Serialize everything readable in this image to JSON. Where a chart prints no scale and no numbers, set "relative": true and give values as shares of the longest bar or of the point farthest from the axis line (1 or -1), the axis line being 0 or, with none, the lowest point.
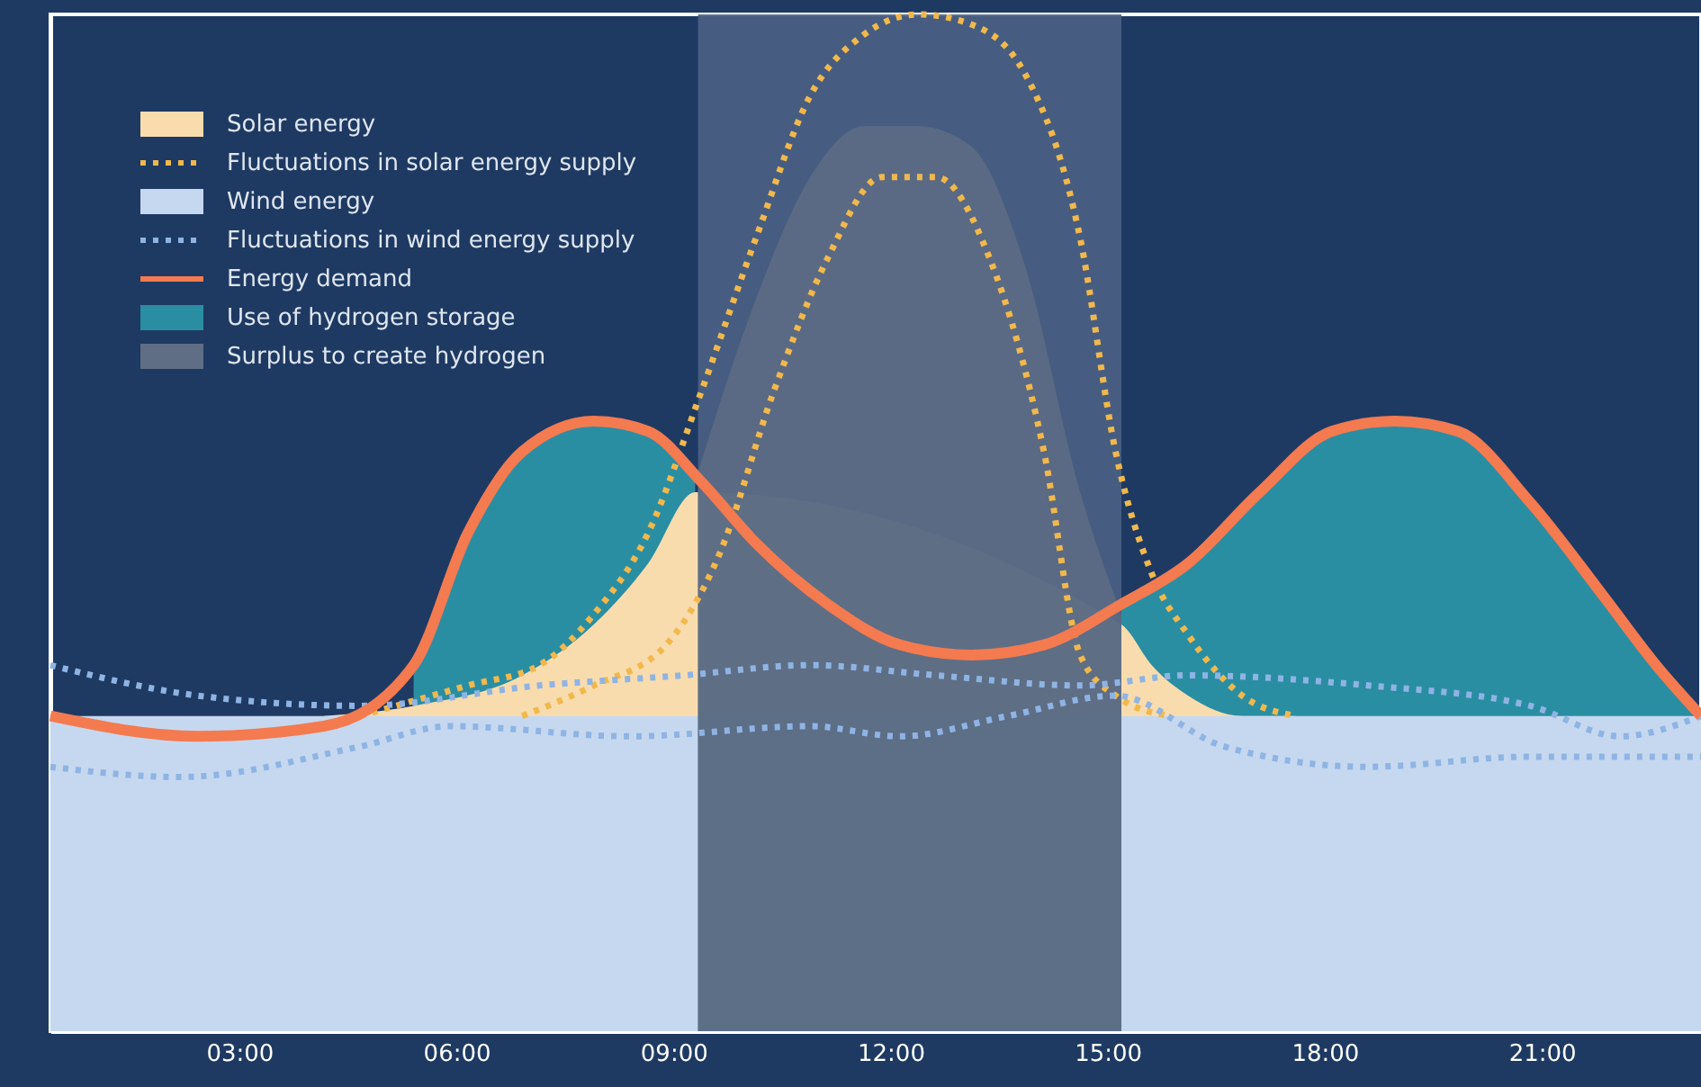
{
  "chart_data": {
    "type": "area",
    "relative": true,
    "xlim": [
      0.39,
      23.2
    ],
    "xticks": [
      {
        "value": 3,
        "label": "03:00"
      },
      {
        "value": 6,
        "label": "06:00"
      },
      {
        "value": 9,
        "label": "09:00"
      },
      {
        "value": 12,
        "label": "12:00"
      },
      {
        "value": 15,
        "label": "15:00"
      },
      {
        "value": 18,
        "label": "18:00"
      },
      {
        "value": 21,
        "label": "21:00"
      }
    ],
    "legend": "top left",
    "grid": false,
    "bands": [
      {
        "axis": "x",
        "from": 9.34,
        "to": 15.19,
        "color": "#4a6284"
      }
    ],
    "series": [
      {
        "name": "Solar energy",
        "color": "#f9dcae",
        "x": [
          4.17,
          5.41,
          6.91,
          7.9,
          8.65,
          9.3,
          15.19,
          15.61,
          16.11,
          16.86,
          17.6
        ],
        "values": [
          0.31,
          0.32,
          0.35,
          0.4,
          0.46,
          0.53,
          0.4,
          0.36,
          0.33,
          0.31,
          0.31
        ]
      },
      {
        "name": "Fluctuations in solar energy supply",
        "type": "line",
        "line_style": "dotted",
        "color": "#f2b84b",
        "x": [
          4.67,
          6.16,
          7.15,
          7.9,
          8.65,
          9.39,
          10.14,
          10.89,
          11.63,
          12.38,
          13.12,
          13.87,
          14.62,
          15.11,
          15.61,
          16.11,
          16.86,
          17.6
        ],
        "values": [
          0.31,
          0.34,
          0.36,
          0.41,
          0.49,
          0.63,
          0.78,
          0.92,
          0.98,
          1.0,
          0.99,
          0.94,
          0.78,
          0.57,
          0.45,
          0.39,
          0.33,
          0.31
        ]
      },
      {
        "type": "line",
        "line_style": "dotted",
        "color": "#f2b84b",
        "x": [
          6.91,
          7.9,
          8.9,
          9.64,
          10.39,
          11.13,
          11.88,
          12.63,
          13.37,
          14.12,
          14.62,
          15.11,
          15.86
        ],
        "values": [
          0.31,
          0.34,
          0.38,
          0.47,
          0.63,
          0.76,
          0.84,
          0.84,
          0.76,
          0.57,
          0.37,
          0.33,
          0.31
        ]
      },
      {
        "name": "Wind energy",
        "color": "#c6d8ef",
        "x": [
          0.39,
          23.2
        ],
        "values": [
          0.31,
          0.31
        ]
      },
      {
        "name": "Fluctuations in wind energy supply",
        "type": "line",
        "line_style": "dotted",
        "color": "#8fb4e3",
        "x": [
          0.39,
          2.43,
          4.67,
          7.15,
          9.14,
          10.89,
          12.63,
          14.62,
          16.11,
          18.6,
          20.84,
          22.08,
          23.2
        ],
        "values": [
          0.36,
          0.33,
          0.32,
          0.34,
          0.35,
          0.36,
          0.35,
          0.34,
          0.35,
          0.34,
          0.32,
          0.29,
          0.31
        ]
      },
      {
        "type": "line",
        "line_style": "dotted",
        "color": "#8fb4e3",
        "x": [
          0.39,
          2.18,
          4.67,
          5.91,
          8.4,
          10.89,
          12.13,
          13.62,
          15.11,
          16.61,
          18.6,
          20.84,
          23.2
        ],
        "values": [
          0.26,
          0.25,
          0.28,
          0.3,
          0.29,
          0.3,
          0.29,
          0.31,
          0.33,
          0.28,
          0.26,
          0.27,
          0.27
        ]
      },
      {
        "name": "Energy demand",
        "type": "line",
        "line_style": "solid",
        "color": "#f47a50",
        "x": [
          0.39,
          2.43,
          4.17,
          5.41,
          6.16,
          6.91,
          7.9,
          8.65,
          9.39,
          10.14,
          11.13,
          12.13,
          13.12,
          14.12,
          15.19,
          16.11,
          17.1,
          18.1,
          18.97,
          19.84,
          20.84,
          21.83,
          22.58,
          23.2
        ],
        "values": [
          0.31,
          0.29,
          0.3,
          0.36,
          0.49,
          0.57,
          0.6,
          0.59,
          0.54,
          0.48,
          0.42,
          0.38,
          0.37,
          0.38,
          0.42,
          0.46,
          0.53,
          0.59,
          0.6,
          0.59,
          0.52,
          0.43,
          0.36,
          0.31
        ]
      },
      {
        "name": "Use of hydrogen storage",
        "color": "#2a8ea3",
        "x": [
          5.41,
          6.16,
          6.91,
          7.9,
          8.65,
          9.3
        ],
        "values": [
          0.36,
          0.49,
          0.57,
          0.6,
          0.59,
          0.54
        ]
      },
      {
        "color": "#2a8ea3",
        "x": [
          15.19,
          16.11,
          17.1,
          18.1,
          18.97,
          19.84,
          20.84,
          21.83,
          22.58,
          23.2
        ],
        "values": [
          0.42,
          0.46,
          0.53,
          0.59,
          0.6,
          0.59,
          0.52,
          0.43,
          0.36,
          0.31
        ]
      },
      {
        "name": "Surplus to create hydrogen",
        "color": "#5f6e84",
        "x": [
          9.34,
          10.14,
          10.89,
          11.63,
          12.38,
          13.12,
          13.87,
          14.62,
          15.19
        ],
        "values": [
          0.55,
          0.72,
          0.84,
          0.89,
          0.89,
          0.87,
          0.75,
          0.53,
          0.41
        ]
      }
    ]
  }
}
